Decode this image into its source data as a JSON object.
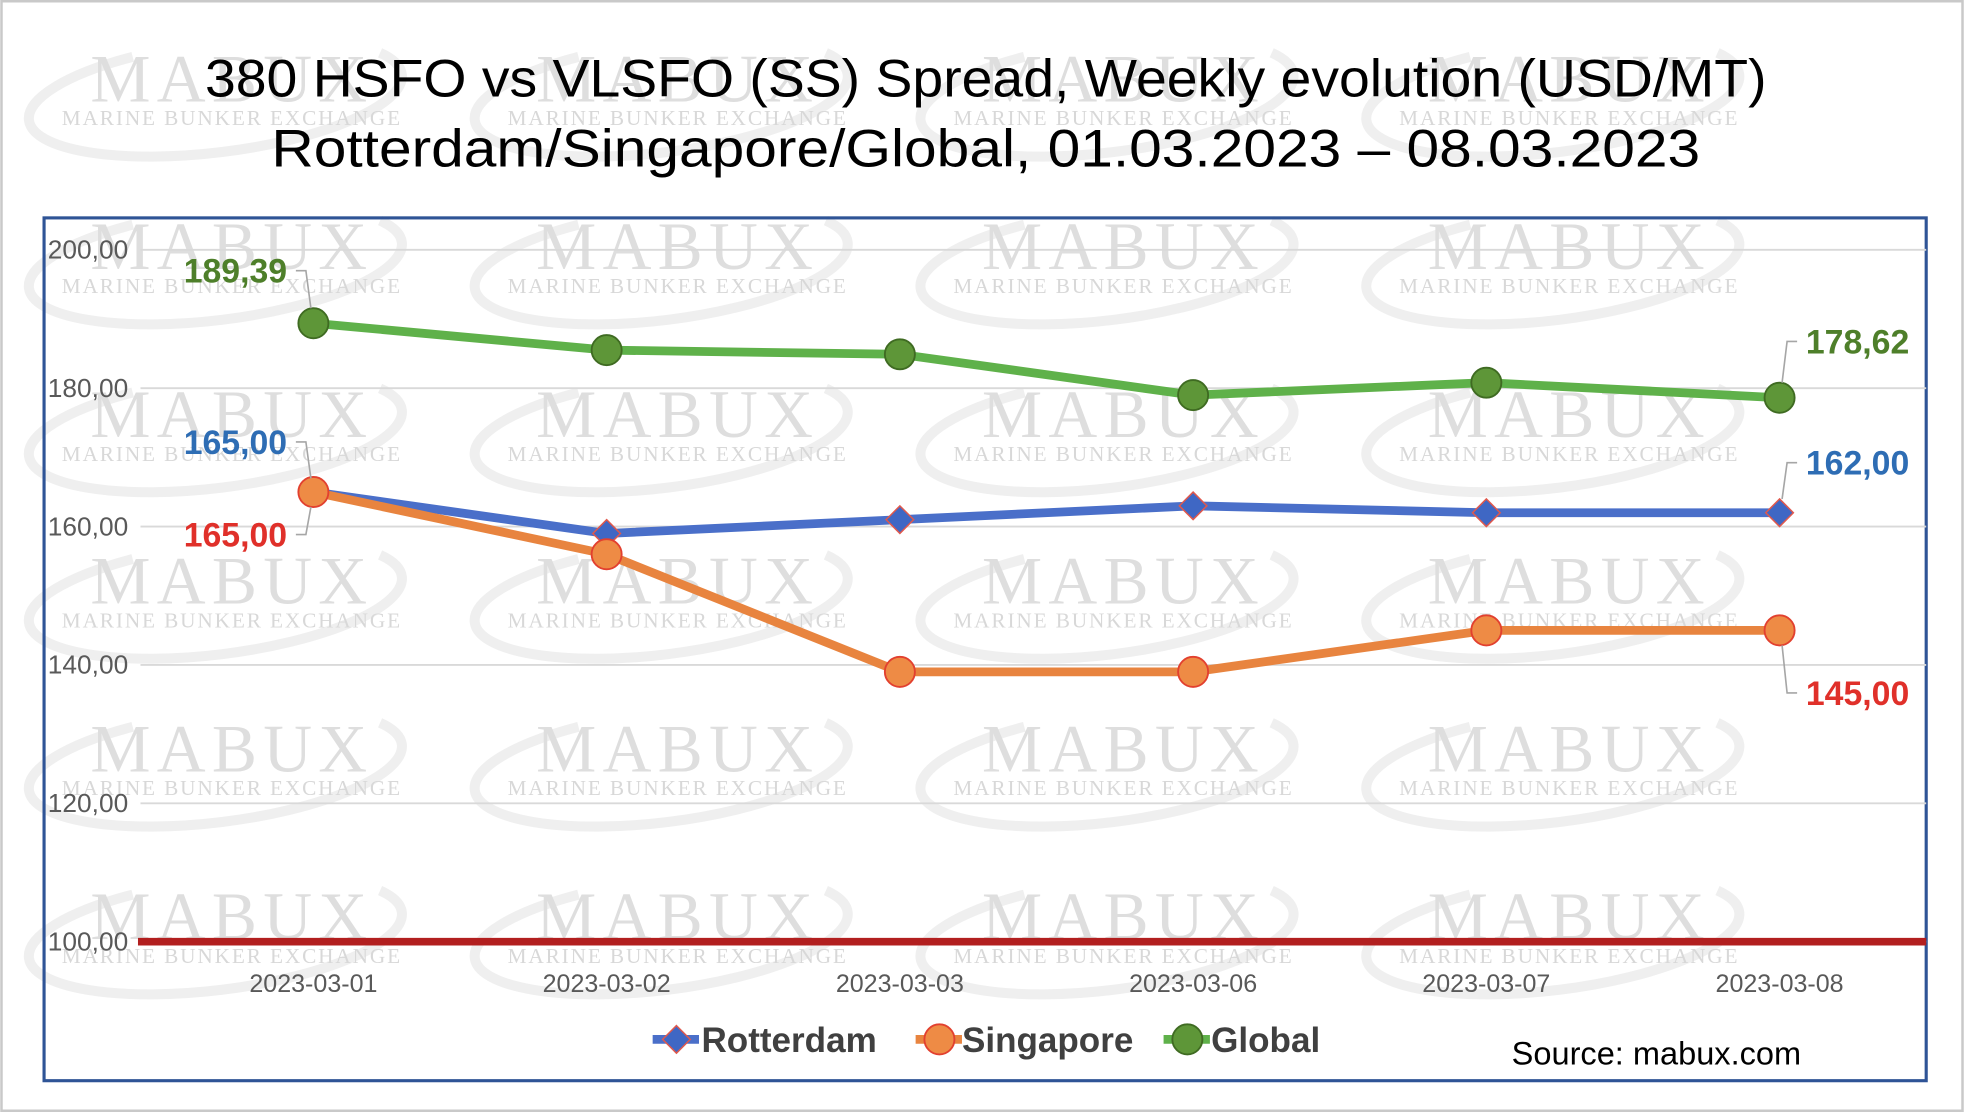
{
  "chart_data": {
    "type": "line",
    "title": "380 HSFO vs VLSFO (SS) Spread, Weekly evolution (USD/MT)",
    "subtitle": "Rotterdam/Singapore/Global, 01.03.2023 – 08.03.2023",
    "xlabel": "",
    "ylabel": "",
    "categories": [
      "2023-03-01",
      "2023-03-02",
      "2023-03-03",
      "2023-03-06",
      "2023-03-07",
      "2023-03-08"
    ],
    "ylim": [
      100,
      200
    ],
    "yticks": [
      "100,00",
      "120,00",
      "140,00",
      "160,00",
      "180,00",
      "200,00"
    ],
    "grid": true,
    "legend": "bottom",
    "baseline": {
      "value": 100,
      "color": "#B21F1F"
    },
    "series": [
      {
        "name": "Rotterdam",
        "marker": "diamond",
        "color": "#4A6FC9",
        "marker_fill": "#3F67C4",
        "marker_stroke": "#E0584C",
        "label_color": "#2E6DB4",
        "values": [
          165,
          159,
          161,
          163,
          162,
          162
        ],
        "labels": [
          {
            "index": 0,
            "text": "165,00"
          },
          {
            "index": 5,
            "text": "162,00"
          }
        ]
      },
      {
        "name": "Singapore",
        "marker": "circle",
        "color": "#E8843F",
        "marker_fill": "#EE8B45",
        "marker_stroke": "#E2402F",
        "label_color": "#E0302A",
        "values": [
          165,
          156,
          139,
          139,
          145,
          145
        ],
        "labels": [
          {
            "index": 0,
            "text": "165,00"
          },
          {
            "index": 5,
            "text": "145,00"
          }
        ]
      },
      {
        "name": "Global",
        "marker": "circle",
        "color": "#5FB14A",
        "marker_fill": "#5E9638",
        "marker_stroke": "#3F6B22",
        "label_color": "#4E7F2A",
        "values": [
          189.39,
          185.5,
          184.9,
          179.0,
          180.8,
          178.62
        ],
        "labels": [
          {
            "index": 0,
            "text": "189,39"
          },
          {
            "index": 5,
            "text": "178,62"
          }
        ]
      }
    ]
  },
  "source": "Source: mabux.com",
  "watermark": {
    "mark": "MABUX",
    "tagline": "MARINE BUNKER EXCHANGE"
  },
  "colors": {
    "frame": "#2F5496",
    "grid": "#D9D9D9",
    "axis_text": "#595959",
    "legend_text": "#404040",
    "leader": "#A6A6A6"
  }
}
